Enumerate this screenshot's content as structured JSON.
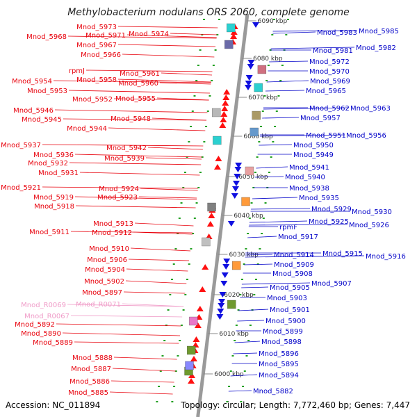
{
  "title": "Methylobacterium nodulans ORS 2060, complete genome",
  "accession": "Accession: NC_011894",
  "topology": "Topology: circular; Length: 7,772,460 bp; Genes: 7,447",
  "colors": {
    "forward_label": "#e8000b",
    "reverse_label": "#0000c8",
    "rna_label": "#f09cc8",
    "axis": "#9a9a9a",
    "tick": "#22a022"
  },
  "kbp_ticks": [
    "6090 kbp",
    "6080 kbp",
    "6070 kbp",
    "6060 kbp",
    "6050 kbp",
    "6040 kbp",
    "6030 kbp",
    "6020 kbp",
    "6010 kbp",
    "6000 kbp"
  ],
  "left_labels": [
    "Mnod_5973",
    "Mnod_5968",
    "Mnod_5971",
    "Mnod_5974",
    "Mnod_5967",
    "Mnod_5966",
    "rpmJ",
    "Mnod_5961",
    "Mnod_5958",
    "Mnod_5960",
    "Mnod_5954",
    "Mnod_5953",
    "Mnod_5952",
    "Mnod_5955",
    "Mnod_5946",
    "Mnod_5945",
    "Mnod_5948",
    "Mnod_5944",
    "Mnod_5937",
    "Mnod_5942",
    "Mnod_5936",
    "Mnod_5939",
    "Mnod_5932",
    "Mnod_5931",
    "Mnod_5921",
    "Mnod_5924",
    "Mnod_5919",
    "Mnod_5923",
    "Mnod_5918",
    "Mnod_5913",
    "Mnod_5911",
    "Mnod_5912",
    "Mnod_5910",
    "Mnod_5906",
    "Mnod_5904",
    "Mnod_5902",
    "Mnod_5897",
    "Mnod_R0069",
    "Mnod_R0071",
    "Mnod_R0067",
    "Mnod_5892",
    "Mnod_5890",
    "Mnod_5889",
    "Mnod_5888",
    "Mnod_5887",
    "Mnod_5886",
    "Mnod_5885"
  ],
  "right_labels": [
    "Mnod_5983",
    "Mnod_5985",
    "Mnod_5981",
    "Mnod_5982",
    "Mnod_5972",
    "Mnod_5970",
    "Mnod_5969",
    "Mnod_5965",
    "Mnod_5962",
    "Mnod_5963",
    "Mnod_5957",
    "Mnod_5951",
    "Mnod_5956",
    "Mnod_5950",
    "Mnod_5949",
    "Mnod_5941",
    "Mnod_5940",
    "Mnod_5938",
    "Mnod_5935",
    "Mnod_5929",
    "Mnod_5930",
    "Mnod_5925",
    "Mnod_5926",
    "rpmF",
    "Mnod_5917",
    "Mnod_5914",
    "Mnod_5915",
    "Mnod_5916",
    "Mnod_5909",
    "Mnod_5908",
    "Mnod_5907",
    "Mnod_5905",
    "Mnod_5903",
    "Mnod_5901",
    "Mnod_5900",
    "Mnod_5899",
    "Mnod_5898",
    "Mnod_5896",
    "Mnod_5895",
    "Mnod_5894",
    "Mnod_5882"
  ]
}
